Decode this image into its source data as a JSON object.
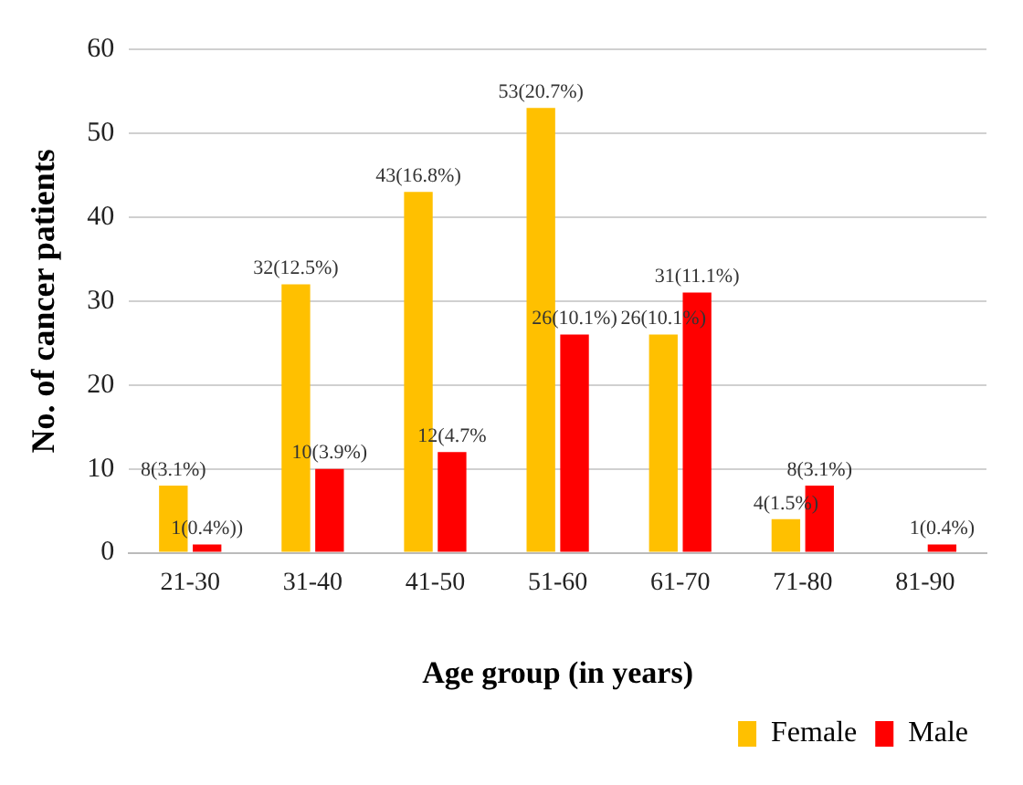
{
  "chart_data": {
    "type": "bar",
    "xlabel": "Age group (in years)",
    "ylabel": "No. of cancer patients",
    "categories": [
      "21-30",
      "31-40",
      "41-50",
      "51-60",
      "61-70",
      "71-80",
      "81-90"
    ],
    "series": [
      {
        "name": "Female",
        "color": "#ffc000",
        "values": [
          8,
          32,
          43,
          53,
          26,
          4,
          null
        ],
        "value_labels": [
          "8(3.1%)",
          "32(12.5%)",
          "43(16.8%)",
          "53(20.7%)",
          "26(10.1%)",
          "4(1.5%)",
          null
        ]
      },
      {
        "name": "Male",
        "color": "#ff0000",
        "values": [
          1,
          10,
          12,
          26,
          31,
          8,
          1
        ],
        "value_labels": [
          "1(0.4%))",
          "10(3.9%)",
          "12(4.7%",
          "26(10.1%)",
          "31(11.1%)",
          "8(3.1%)",
          "1(0.4%)"
        ]
      }
    ],
    "ylim": [
      0,
      60
    ],
    "yticks": [
      0,
      10,
      20,
      30,
      40,
      50,
      60
    ],
    "grid": "y",
    "legend": "bottom right"
  }
}
